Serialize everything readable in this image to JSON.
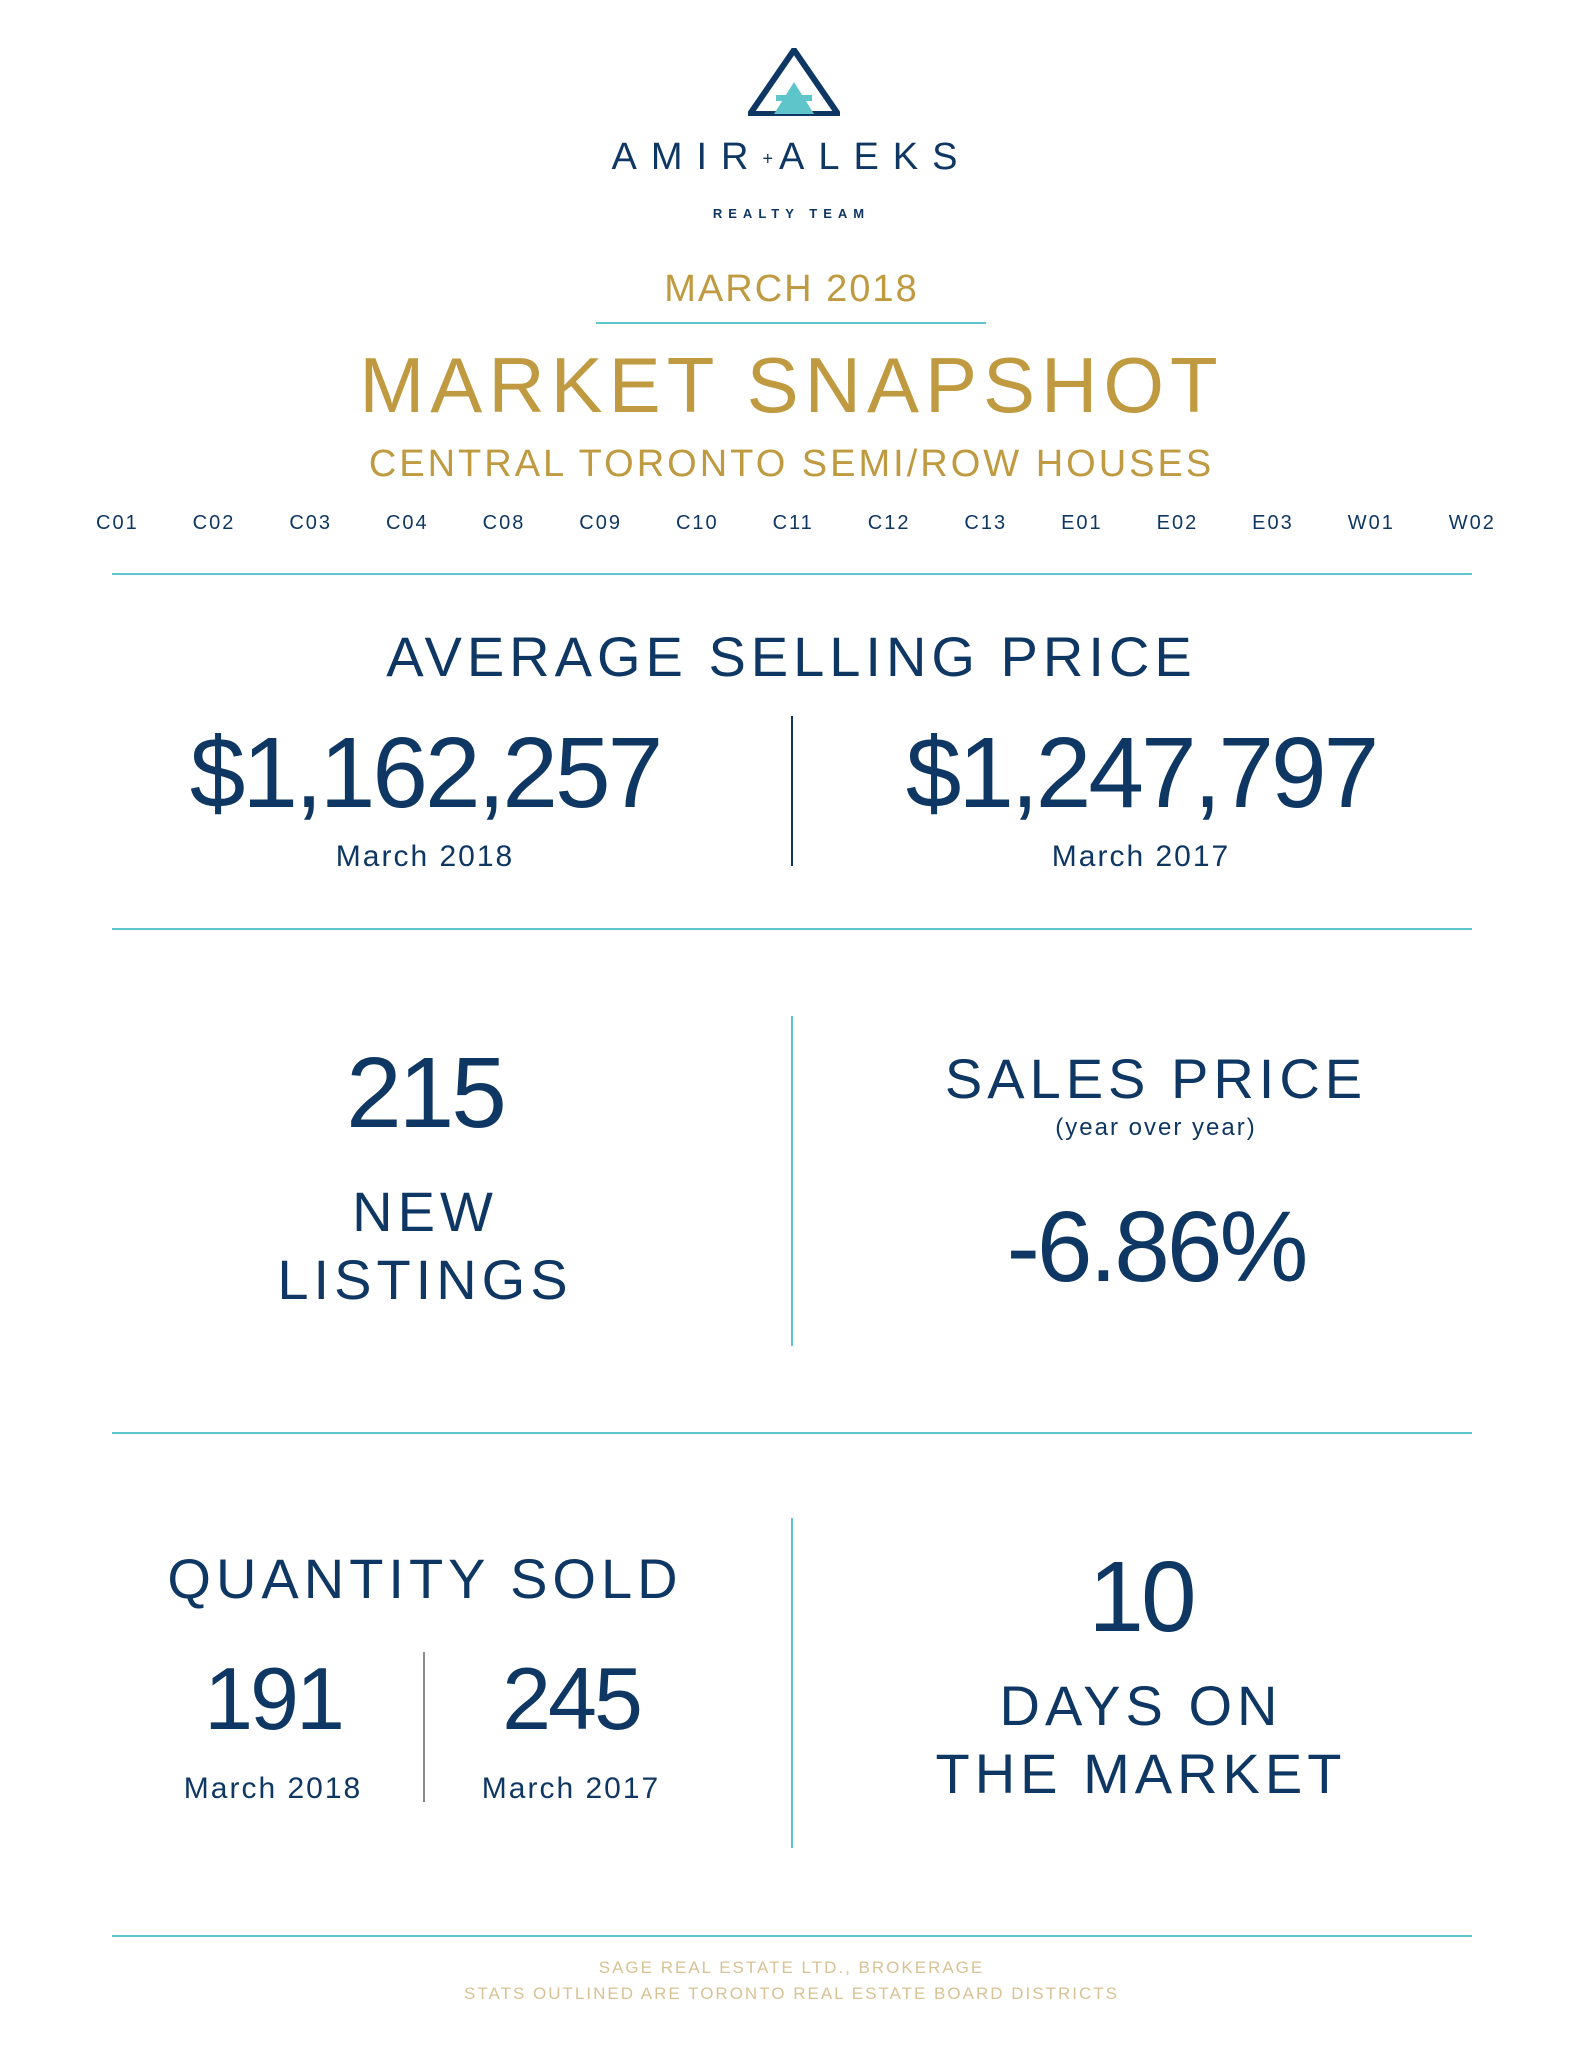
{
  "logo": {
    "brand_left": "AMIR",
    "brand_plus": "+",
    "brand_right": "ALEKS",
    "tagline": "REALTY TEAM"
  },
  "header": {
    "month": "MARCH 2018",
    "title": "MARKET SNAPSHOT",
    "subtitle": "CENTRAL TORONTO SEMI/ROW HOUSES",
    "districts": [
      "C01",
      "C02",
      "C03",
      "C04",
      "C08",
      "C09",
      "C10",
      "C11",
      "C12",
      "C13",
      "E01",
      "E02",
      "E03",
      "W01",
      "W02"
    ]
  },
  "avg_price": {
    "heading": "AVERAGE SELLING PRICE",
    "current_value": "$1,162,257",
    "current_label": "March 2018",
    "prior_value": "$1,247,797",
    "prior_label": "March 2017"
  },
  "new_listings": {
    "value": "215",
    "label_line1": "NEW",
    "label_line2": "LISTINGS"
  },
  "sales_price": {
    "heading": "SALES PRICE",
    "note": "(year over year)",
    "value": "-6.86%"
  },
  "quantity_sold": {
    "heading": "QUANTITY SOLD",
    "current_value": "191",
    "current_label": "March 2018",
    "prior_value": "245",
    "prior_label": "March 2017"
  },
  "days_on_market": {
    "value": "10",
    "label_line1": "DAYS ON",
    "label_line2": "THE MARKET"
  },
  "footer": {
    "line1": "SAGE REAL ESTATE LTD., BROKERAGE",
    "line2": "STATS OUTLINED ARE TORONTO REAL ESTATE BOARD DISTRICTS"
  },
  "colors": {
    "navy": "#0f3763",
    "gold": "#bf9a40",
    "teal": "#5ec5cb"
  }
}
